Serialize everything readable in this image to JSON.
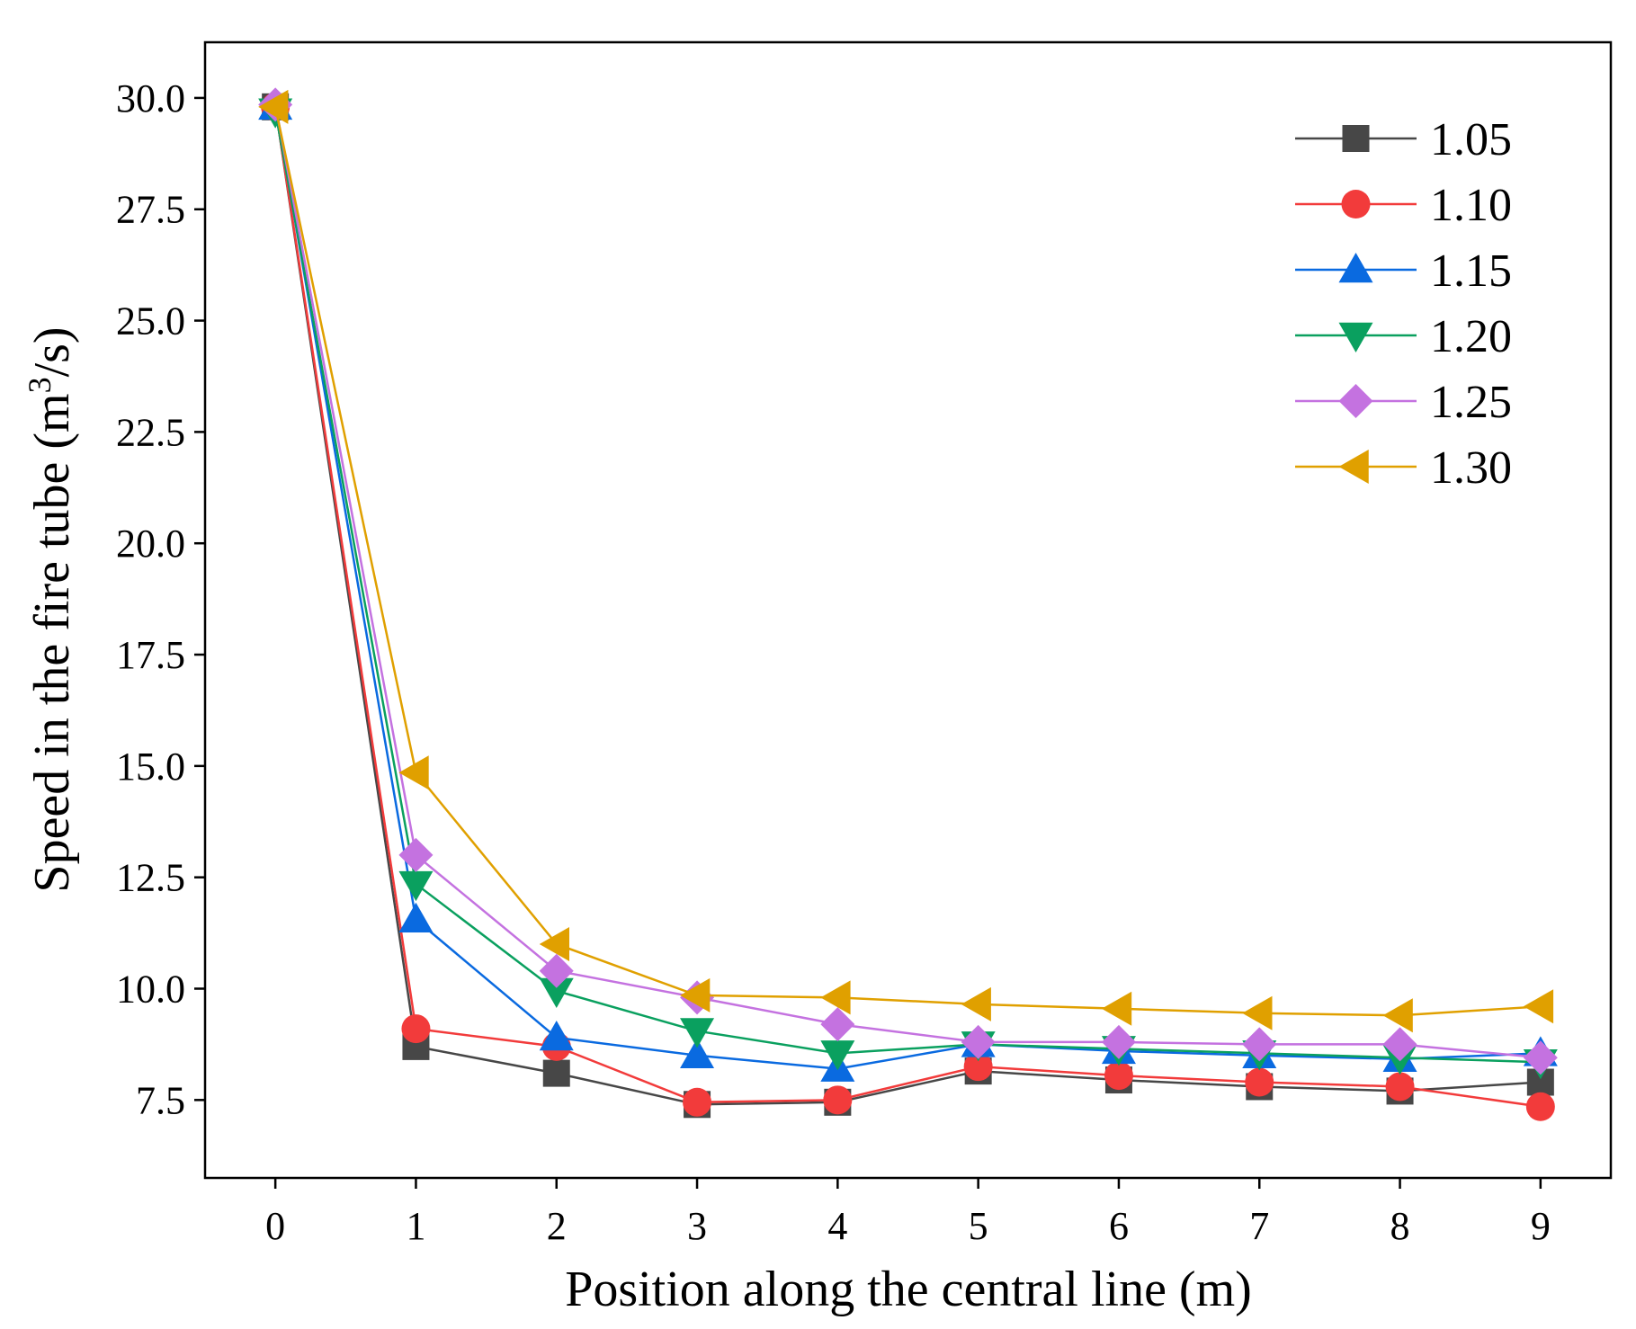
{
  "chart_data": {
    "type": "line",
    "title": "",
    "xlabel": "Position along the central line (m)",
    "ylabel_main": "Speed in the fire tube (m",
    "ylabel_sup": "3",
    "ylabel_end": "/s)",
    "x": [
      0,
      1,
      2,
      3,
      4,
      5,
      6,
      7,
      8,
      9
    ],
    "xlim": [
      -0.5,
      9.5
    ],
    "ylim": [
      5.75,
      31.25
    ],
    "xticks": [
      "0",
      "1",
      "2",
      "3",
      "4",
      "5",
      "6",
      "7",
      "8",
      "9"
    ],
    "yticks": [
      7.5,
      10.0,
      12.5,
      15.0,
      17.5,
      20.0,
      22.5,
      25.0,
      27.5,
      30.0
    ],
    "ytick_labels": [
      "7.5",
      "10.0",
      "12.5",
      "15.0",
      "17.5",
      "20.0",
      "22.5",
      "25.0",
      "27.5",
      "30.0"
    ],
    "grid": false,
    "legend_position": "top-right",
    "series": [
      {
        "name": "1.05",
        "color": "#474747",
        "marker": "square",
        "values": [
          29.8,
          8.7,
          8.1,
          7.4,
          7.45,
          8.15,
          7.95,
          7.8,
          7.7,
          7.9
        ]
      },
      {
        "name": "1.10",
        "color": "#f23b3b",
        "marker": "circle",
        "values": [
          29.8,
          9.1,
          8.7,
          7.45,
          7.5,
          8.25,
          8.05,
          7.9,
          7.8,
          7.35
        ]
      },
      {
        "name": "1.15",
        "color": "#0a6ae0",
        "marker": "triangle-up",
        "values": [
          29.8,
          11.55,
          8.9,
          8.5,
          8.2,
          8.75,
          8.6,
          8.5,
          8.42,
          8.55
        ]
      },
      {
        "name": "1.20",
        "color": "#0aa05f",
        "marker": "triangle-down",
        "values": [
          29.7,
          12.35,
          9.95,
          9.05,
          8.55,
          8.75,
          8.65,
          8.55,
          8.45,
          8.35
        ]
      },
      {
        "name": "1.25",
        "color": "#c472e0",
        "marker": "diamond",
        "values": [
          29.85,
          13.0,
          10.4,
          9.8,
          9.2,
          8.8,
          8.8,
          8.75,
          8.75,
          8.45
        ]
      },
      {
        "name": "1.30",
        "color": "#e0a000",
        "marker": "triangle-left",
        "values": [
          29.8,
          14.85,
          11.0,
          9.85,
          9.8,
          9.65,
          9.55,
          9.45,
          9.4,
          9.6
        ]
      }
    ]
  }
}
